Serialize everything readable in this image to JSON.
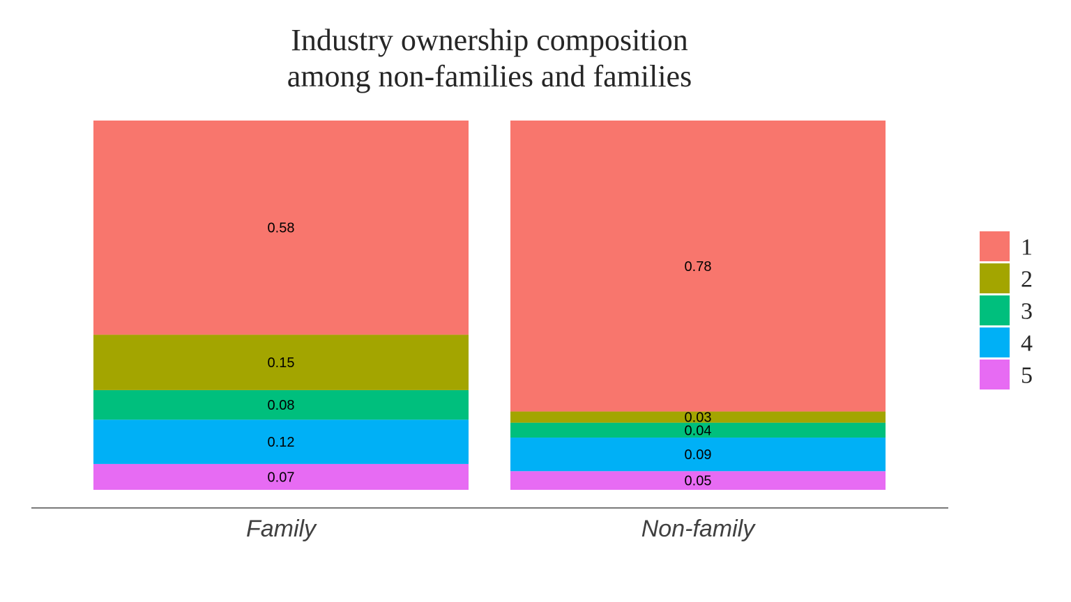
{
  "chart_data": {
    "type": "bar",
    "stacked": true,
    "title": "Industry ownership composition\namong non-families and families",
    "title_lines": [
      "Industry ownership composition",
      "among non-families and families"
    ],
    "xlabel": "",
    "ylabel": "",
    "categories": [
      "Family",
      "Non-family"
    ],
    "ylim": [
      0,
      1
    ],
    "grid": false,
    "legend_position": "right",
    "series": [
      {
        "name": "1",
        "color": "#F8766D",
        "values": [
          0.58,
          0.78
        ],
        "labels": [
          "0.58",
          "0.78"
        ]
      },
      {
        "name": "2",
        "color": "#A3A500",
        "values": [
          0.15,
          0.03
        ],
        "labels": [
          "0.15",
          "0.03"
        ]
      },
      {
        "name": "3",
        "color": "#00BF7D",
        "values": [
          0.08,
          0.04
        ],
        "labels": [
          "0.08",
          "0.04"
        ]
      },
      {
        "name": "4",
        "color": "#00B0F6",
        "values": [
          0.12,
          0.09
        ],
        "labels": [
          "0.12",
          "0.09"
        ]
      },
      {
        "name": "5",
        "color": "#E76BF3",
        "values": [
          0.07,
          0.05
        ],
        "labels": [
          "0.07",
          "0.05"
        ]
      }
    ]
  }
}
